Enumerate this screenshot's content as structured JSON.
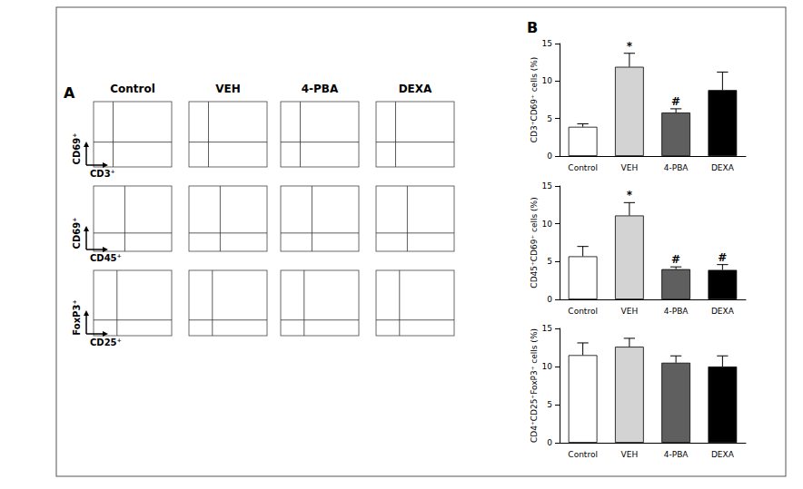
{
  "panel_A": {
    "label": "A",
    "columns": [
      "Control",
      "VEH",
      "4-PBA",
      "DEXA"
    ],
    "rows": [
      {
        "y_label": "CD69⁺",
        "x_label": "CD3⁺"
      },
      {
        "y_label": "CD69⁺",
        "x_label": "CD45⁺"
      },
      {
        "y_label": "FoxP3⁺",
        "x_label": "CD25⁺"
      }
    ]
  },
  "panel_B": {
    "label": "B"
  },
  "chart_data": [
    {
      "type": "bar",
      "y_label": "CD3⁺CD69⁺ cells (%)",
      "categories": [
        "Control",
        "VEH",
        "4-PBA",
        "DEXA"
      ],
      "values": [
        3.9,
        11.9,
        5.8,
        8.8
      ],
      "errors": [
        0.4,
        1.8,
        0.5,
        2.4
      ],
      "colors": [
        "#ffffff",
        "#d3d3d3",
        "#5f5f5f",
        "#000000"
      ],
      "ylim": [
        0,
        15
      ],
      "yticks": [
        0,
        5,
        10,
        15
      ],
      "grid": false,
      "annotations": [
        {
          "category": "VEH",
          "text": "*"
        },
        {
          "category": "4-PBA",
          "text": "#"
        }
      ]
    },
    {
      "type": "bar",
      "y_label": "CD45⁺CD69⁺ cells (%)",
      "categories": [
        "Control",
        "VEH",
        "4-PBA",
        "DEXA"
      ],
      "values": [
        5.7,
        11.1,
        4.0,
        3.9
      ],
      "errors": [
        1.3,
        1.7,
        0.3,
        0.7
      ],
      "colors": [
        "#ffffff",
        "#d3d3d3",
        "#5f5f5f",
        "#000000"
      ],
      "ylim": [
        0,
        15
      ],
      "yticks": [
        0,
        5,
        10,
        15
      ],
      "grid": false,
      "annotations": [
        {
          "category": "VEH",
          "text": "*"
        },
        {
          "category": "4-PBA",
          "text": "#"
        },
        {
          "category": "DEXA",
          "text": "#"
        }
      ]
    },
    {
      "type": "bar",
      "y_label": "CD4⁺CD25⁺FoxP3⁺ cells (%)",
      "categories": [
        "Control",
        "VEH",
        "4-PBA",
        "DEXA"
      ],
      "values": [
        11.5,
        12.6,
        10.5,
        10.0
      ],
      "errors": [
        1.6,
        1.1,
        0.9,
        1.4
      ],
      "colors": [
        "#ffffff",
        "#d3d3d3",
        "#5f5f5f",
        "#000000"
      ],
      "ylim": [
        0,
        15
      ],
      "yticks": [
        0,
        5,
        10,
        15
      ],
      "grid": false,
      "annotations": []
    }
  ]
}
